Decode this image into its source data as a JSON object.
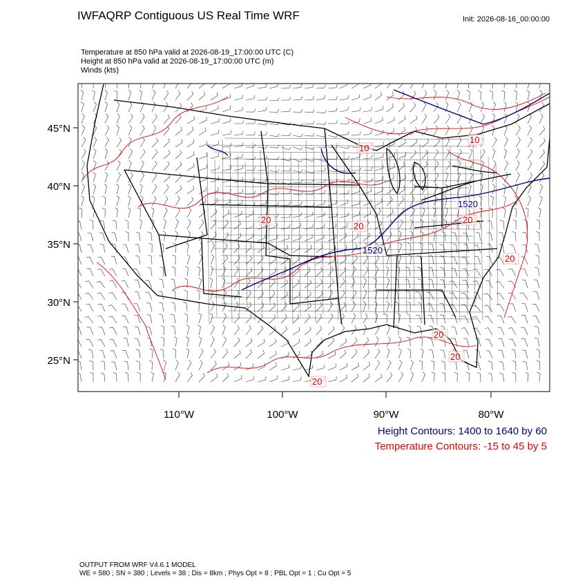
{
  "header": {
    "title": "IWFAQRP Contiguous US Real Time WRF",
    "init": "Init: 2026-08-16_00:00:00"
  },
  "fields": [
    "Temperature at 850 hPa valid at 2026-08-19_17:00:00 UTC   (C)",
    "Height at 850 hPa valid at 2026-08-19_17:00:00 UTC   (m)",
    "Winds   (kts)"
  ],
  "map": {
    "lat_labels": [
      "45°N",
      "40°N",
      "35°N",
      "30°N",
      "25°N"
    ],
    "lon_labels": [
      "110°W",
      "100°W",
      "90°W",
      "80°W"
    ],
    "contour_labels": [
      "20",
      "20",
      "20",
      "20",
      "20",
      "20",
      "20",
      "10",
      "10",
      "1520",
      "1520"
    ]
  },
  "legend": {
    "height": "Height Contours: 1400 to 1640 by 60",
    "temperature": "Temperature Contours: -15 to 45 by 5"
  },
  "footer": [
    "OUTPUT FROM WRF V4.6.1 MODEL",
    "WE = 580 ; SN = 380 ; Levels = 38 ; Dis = 8km ; Phys Opt = 8 ; PBL Opt = 1 ; Cu Opt = 5"
  ]
}
